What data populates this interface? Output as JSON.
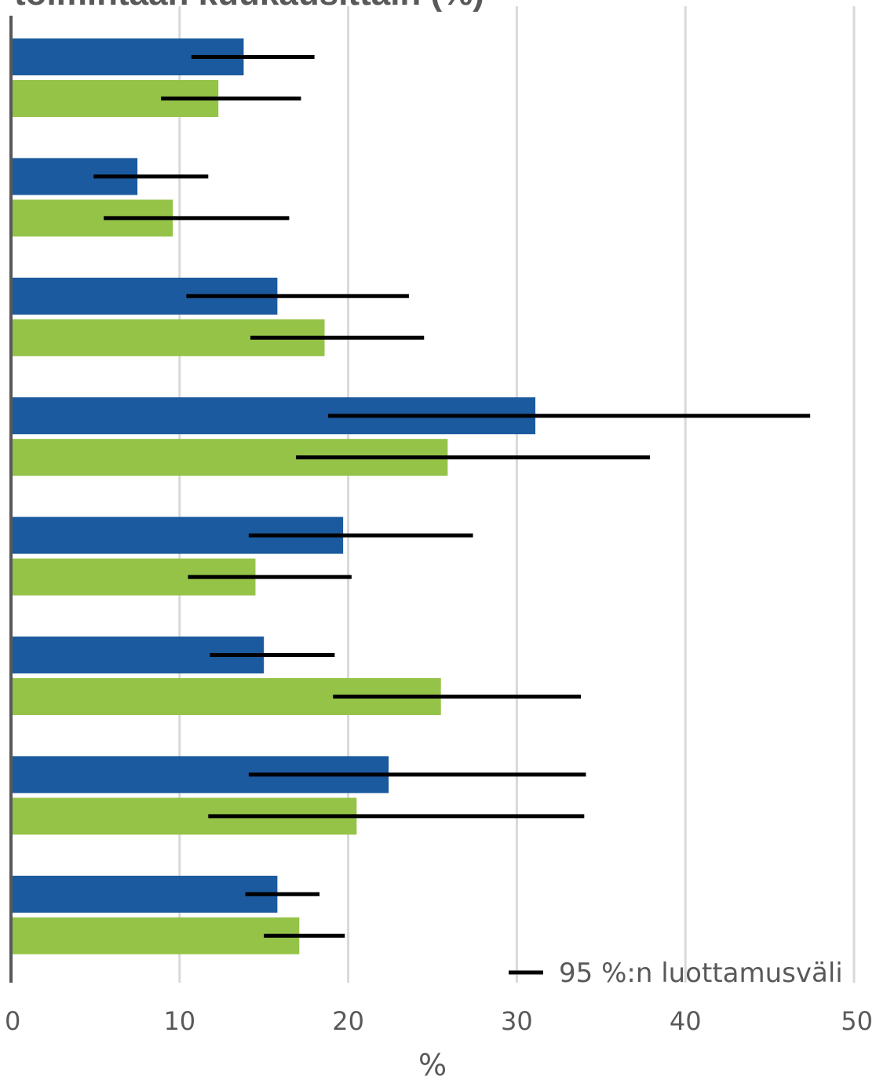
{
  "chart_data": {
    "type": "bar",
    "orientation": "horizontal",
    "title": "toimintaan kuukausittain (%)",
    "xlabel": "%",
    "ylabel": "",
    "xlim": [
      0,
      50
    ],
    "x_ticks": [
      "0",
      "10",
      "20",
      "30",
      "40",
      "50"
    ],
    "grid": true,
    "legend": {
      "placement": "bottom-right",
      "label": "95 %:n luottamusväli"
    },
    "colors": {
      "series_a": "#1b5a9e",
      "series_b": "#95c347",
      "error_bar": "#000000",
      "grid": "#d9d9d9",
      "axis": "#595959"
    },
    "groups": [
      {
        "a": {
          "value": 13.8,
          "ci": [
            10.7,
            18.0
          ]
        },
        "b": {
          "value": 12.3,
          "ci": [
            8.9,
            17.2
          ]
        }
      },
      {
        "a": {
          "value": 7.5,
          "ci": [
            4.9,
            11.7
          ]
        },
        "b": {
          "value": 9.6,
          "ci": [
            5.5,
            16.5
          ]
        }
      },
      {
        "a": {
          "value": 15.8,
          "ci": [
            10.4,
            23.6
          ]
        },
        "b": {
          "value": 18.6,
          "ci": [
            14.2,
            24.5
          ]
        }
      },
      {
        "a": {
          "value": 31.1,
          "ci": [
            18.8,
            47.4
          ]
        },
        "b": {
          "value": 25.9,
          "ci": [
            16.9,
            37.9
          ]
        }
      },
      {
        "a": {
          "value": 19.7,
          "ci": [
            14.1,
            27.4
          ]
        },
        "b": {
          "value": 14.5,
          "ci": [
            10.5,
            20.2
          ]
        }
      },
      {
        "a": {
          "value": 15.0,
          "ci": [
            11.8,
            19.2
          ]
        },
        "b": {
          "value": 25.5,
          "ci": [
            19.1,
            33.8
          ]
        }
      },
      {
        "a": {
          "value": 22.4,
          "ci": [
            14.1,
            34.1
          ]
        },
        "b": {
          "value": 20.5,
          "ci": [
            11.7,
            34.0
          ]
        }
      },
      {
        "a": {
          "value": 15.8,
          "ci": [
            13.9,
            18.3
          ]
        },
        "b": {
          "value": 17.1,
          "ci": [
            15.0,
            19.8
          ]
        }
      }
    ]
  }
}
